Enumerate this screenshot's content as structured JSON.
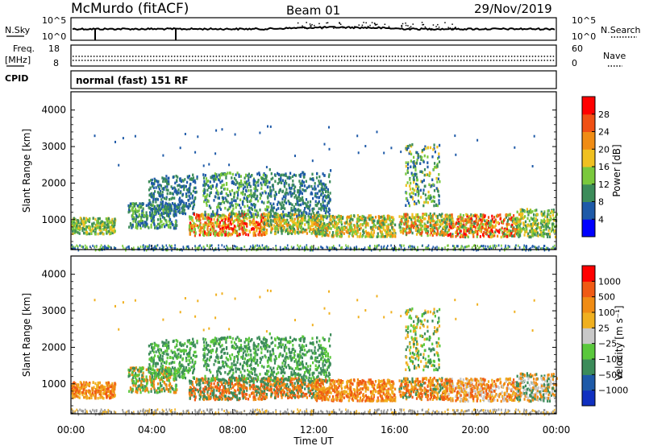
{
  "header": {
    "station": "McMurdo (fitACF)",
    "beam": "Beam 01",
    "date": "29/Nov/2019"
  },
  "top_panels": {
    "nsky": {
      "label": "N.Sky",
      "tick_top": "10^5",
      "tick_bottom": "10^0"
    },
    "nsearch": {
      "label": "N.Search",
      "tick_top": "10^5",
      "tick_bottom": "10^0"
    },
    "freq": {
      "label_1": "Freq.",
      "label_2": "[MHz]",
      "tick_top": "18",
      "tick_bottom": "8"
    },
    "nave": {
      "label": "Nave",
      "tick_top": "60",
      "tick_bottom": "0"
    },
    "cpid": {
      "label": "CPID",
      "text": "normal (fast) 151 RF"
    }
  },
  "chart_data": [
    {
      "type": "heatmap",
      "name": "power-panel",
      "ylabel": "Slant Range [km]",
      "y_ticks": [
        "1000",
        "2000",
        "3000",
        "4000"
      ],
      "ylim": [
        180,
        4500
      ],
      "xlim": [
        0,
        24
      ],
      "colorbar": {
        "label": "Power [dB]",
        "ticks": [
          "4",
          "8",
          "12",
          "16",
          "20",
          "24",
          "28"
        ],
        "colors": [
          "#0000ff",
          "#1e5aa8",
          "#3c8c5a",
          "#7ac83c",
          "#f0c020",
          "#f08c14",
          "#f05014",
          "#ff0000"
        ]
      }
    },
    {
      "type": "heatmap",
      "name": "velocity-panel",
      "ylabel": "Slant Range [km]",
      "xlabel": "Time UT",
      "y_ticks": [
        "1000",
        "2000",
        "3000",
        "4000"
      ],
      "x_ticks": [
        "00:00",
        "04:00",
        "08:00",
        "12:00",
        "16:00",
        "20:00",
        "00:00"
      ],
      "ylim": [
        180,
        4500
      ],
      "xlim": [
        0,
        24
      ],
      "colorbar": {
        "label": "Velocity [m s⁻¹]",
        "ticks": [
          "1000",
          "500",
          "100",
          "25",
          "−25",
          "−100",
          "−500",
          "−1000"
        ],
        "colors": [
          "#1030c0",
          "#1e5aa8",
          "#3c8c5a",
          "#5ac83c",
          "#c8c8c8",
          "#f0b020",
          "#f08c14",
          "#f05a14",
          "#ff0000"
        ]
      }
    }
  ],
  "colors": {
    "ground_scatter": "#969696",
    "axis": "#000000"
  }
}
